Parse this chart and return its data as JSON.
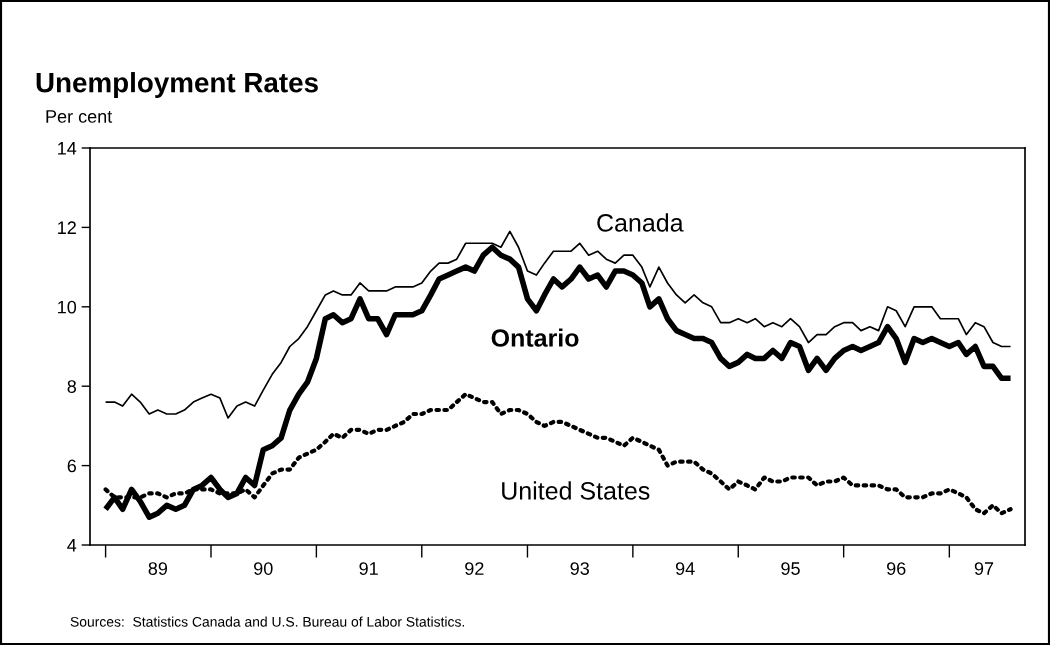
{
  "chart_data": {
    "type": "line",
    "title": "Unemployment Rates",
    "ylabel": "Per cent",
    "x": [
      "1989-01",
      "1989-02",
      "1989-03",
      "1989-04",
      "1989-05",
      "1989-06",
      "1989-07",
      "1989-08",
      "1989-09",
      "1989-10",
      "1989-11",
      "1989-12",
      "1990-01",
      "1990-02",
      "1990-03",
      "1990-04",
      "1990-05",
      "1990-06",
      "1990-07",
      "1990-08",
      "1990-09",
      "1990-10",
      "1990-11",
      "1990-12",
      "1991-01",
      "1991-02",
      "1991-03",
      "1991-04",
      "1991-05",
      "1991-06",
      "1991-07",
      "1991-08",
      "1991-09",
      "1991-10",
      "1991-11",
      "1991-12",
      "1992-01",
      "1992-02",
      "1992-03",
      "1992-04",
      "1992-05",
      "1992-06",
      "1992-07",
      "1992-08",
      "1992-09",
      "1992-10",
      "1992-11",
      "1992-12",
      "1993-01",
      "1993-02",
      "1993-03",
      "1993-04",
      "1993-05",
      "1993-06",
      "1993-07",
      "1993-08",
      "1993-09",
      "1993-10",
      "1993-11",
      "1993-12",
      "1994-01",
      "1994-02",
      "1994-03",
      "1994-04",
      "1994-05",
      "1994-06",
      "1994-07",
      "1994-08",
      "1994-09",
      "1994-10",
      "1994-11",
      "1994-12",
      "1995-01",
      "1995-02",
      "1995-03",
      "1995-04",
      "1995-05",
      "1995-06",
      "1995-07",
      "1995-08",
      "1995-09",
      "1995-10",
      "1995-11",
      "1995-12",
      "1996-01",
      "1996-02",
      "1996-03",
      "1996-04",
      "1996-05",
      "1996-06",
      "1996-07",
      "1996-08",
      "1996-09",
      "1996-10",
      "1996-11",
      "1996-12",
      "1997-01",
      "1997-02",
      "1997-03",
      "1997-04",
      "1997-05",
      "1997-06",
      "1997-07",
      "1997-08"
    ],
    "series": [
      {
        "name": "Canada",
        "color": "#000000",
        "line_style": "solid",
        "values": [
          7.6,
          7.6,
          7.5,
          7.8,
          7.6,
          7.3,
          7.4,
          7.3,
          7.3,
          7.4,
          7.6,
          7.7,
          7.8,
          7.7,
          7.2,
          7.5,
          7.6,
          7.5,
          7.9,
          8.3,
          8.6,
          9.0,
          9.2,
          9.5,
          9.9,
          10.3,
          10.4,
          10.3,
          10.3,
          10.6,
          10.4,
          10.4,
          10.4,
          10.5,
          10.5,
          10.5,
          10.6,
          10.9,
          11.1,
          11.1,
          11.2,
          11.6,
          11.6,
          11.6,
          11.6,
          11.5,
          11.9,
          11.5,
          10.9,
          10.8,
          11.1,
          11.4,
          11.4,
          11.4,
          11.6,
          11.3,
          11.4,
          11.2,
          11.1,
          11.3,
          11.3,
          11.0,
          10.5,
          11.0,
          10.6,
          10.3,
          10.1,
          10.3,
          10.1,
          10.0,
          9.6,
          9.6,
          9.7,
          9.6,
          9.7,
          9.5,
          9.6,
          9.5,
          9.7,
          9.5,
          9.1,
          9.3,
          9.3,
          9.5,
          9.6,
          9.6,
          9.4,
          9.5,
          9.4,
          10.0,
          9.9,
          9.5,
          10.0,
          10.0,
          10.0,
          9.7,
          9.7,
          9.7,
          9.3,
          9.6,
          9.5,
          9.1,
          9.0,
          9.0
        ]
      },
      {
        "name": "Ontario",
        "color": "#000000",
        "line_style": "solid",
        "values": [
          4.9,
          5.2,
          4.9,
          5.4,
          5.1,
          4.7,
          4.8,
          5.0,
          4.9,
          5.0,
          5.4,
          5.5,
          5.7,
          5.4,
          5.2,
          5.3,
          5.7,
          5.5,
          6.4,
          6.5,
          6.7,
          7.4,
          7.8,
          8.1,
          8.7,
          9.7,
          9.8,
          9.6,
          9.7,
          10.2,
          9.7,
          9.7,
          9.3,
          9.8,
          9.8,
          9.8,
          9.9,
          10.3,
          10.7,
          10.8,
          10.9,
          11.0,
          10.9,
          11.3,
          11.5,
          11.3,
          11.2,
          11.0,
          10.2,
          9.9,
          10.3,
          10.7,
          10.5,
          10.7,
          11.0,
          10.7,
          10.8,
          10.5,
          10.9,
          10.9,
          10.8,
          10.6,
          10.0,
          10.2,
          9.7,
          9.4,
          9.3,
          9.2,
          9.2,
          9.1,
          8.7,
          8.5,
          8.6,
          8.8,
          8.7,
          8.7,
          8.9,
          8.7,
          9.1,
          9.0,
          8.4,
          8.7,
          8.4,
          8.7,
          8.9,
          9.0,
          8.9,
          9.0,
          9.1,
          9.5,
          9.2,
          8.6,
          9.2,
          9.1,
          9.2,
          9.1,
          9.0,
          9.1,
          8.8,
          9.0,
          8.5,
          8.5,
          8.2,
          8.2
        ]
      },
      {
        "name": "United States",
        "color": "#000000",
        "line_style": "dotted",
        "values": [
          5.4,
          5.2,
          5.2,
          5.2,
          5.2,
          5.3,
          5.3,
          5.2,
          5.3,
          5.3,
          5.4,
          5.4,
          5.4,
          5.3,
          5.3,
          5.3,
          5.4,
          5.2,
          5.5,
          5.8,
          5.9,
          5.9,
          6.2,
          6.3,
          6.4,
          6.6,
          6.8,
          6.7,
          6.9,
          6.9,
          6.8,
          6.9,
          6.9,
          7.0,
          7.1,
          7.3,
          7.3,
          7.4,
          7.4,
          7.4,
          7.6,
          7.8,
          7.7,
          7.6,
          7.6,
          7.3,
          7.4,
          7.4,
          7.3,
          7.1,
          7.0,
          7.1,
          7.1,
          7.0,
          6.9,
          6.8,
          6.7,
          6.7,
          6.6,
          6.5,
          6.7,
          6.6,
          6.5,
          6.4,
          6.0,
          6.1,
          6.1,
          6.1,
          5.9,
          5.8,
          5.6,
          5.4,
          5.6,
          5.5,
          5.4,
          5.7,
          5.6,
          5.6,
          5.7,
          5.7,
          5.7,
          5.5,
          5.6,
          5.6,
          5.7,
          5.5,
          5.5,
          5.5,
          5.5,
          5.4,
          5.4,
          5.2,
          5.2,
          5.2,
          5.3,
          5.3,
          5.4,
          5.3,
          5.2,
          4.9,
          4.8,
          5.0,
          4.8,
          4.9
        ]
      }
    ],
    "xlim": [
      "1988-11-08",
      "1997-09-20"
    ],
    "xticks": [
      {
        "value": "1989-01-01",
        "label": null
      },
      {
        "value": "1989-07-01",
        "label": "89"
      },
      {
        "value": "1990-01-01",
        "label": null
      },
      {
        "value": "1990-07-01",
        "label": "90"
      },
      {
        "value": "1991-01-01",
        "label": null
      },
      {
        "value": "1991-07-01",
        "label": "91"
      },
      {
        "value": "1992-01-01",
        "label": null
      },
      {
        "value": "1992-07-01",
        "label": "92"
      },
      {
        "value": "1993-01-01",
        "label": null
      },
      {
        "value": "1993-07-01",
        "label": "93"
      },
      {
        "value": "1994-01-01",
        "label": null
      },
      {
        "value": "1994-07-01",
        "label": "94"
      },
      {
        "value": "1995-01-01",
        "label": null
      },
      {
        "value": "1995-07-01",
        "label": "95"
      },
      {
        "value": "1996-01-01",
        "label": null
      },
      {
        "value": "1996-07-01",
        "label": "96"
      },
      {
        "value": "1997-01-01",
        "label": null
      },
      {
        "value": "1997-05-01",
        "label": "97"
      }
    ],
    "ylim": [
      4,
      14
    ],
    "yticks": [
      4,
      6,
      8,
      10,
      12,
      14
    ],
    "grid": false,
    "legend": false,
    "marker": "none",
    "annotations": [
      "Sources:  Statistics Canada and U.S. Bureau of Labor Statistics."
    ]
  }
}
